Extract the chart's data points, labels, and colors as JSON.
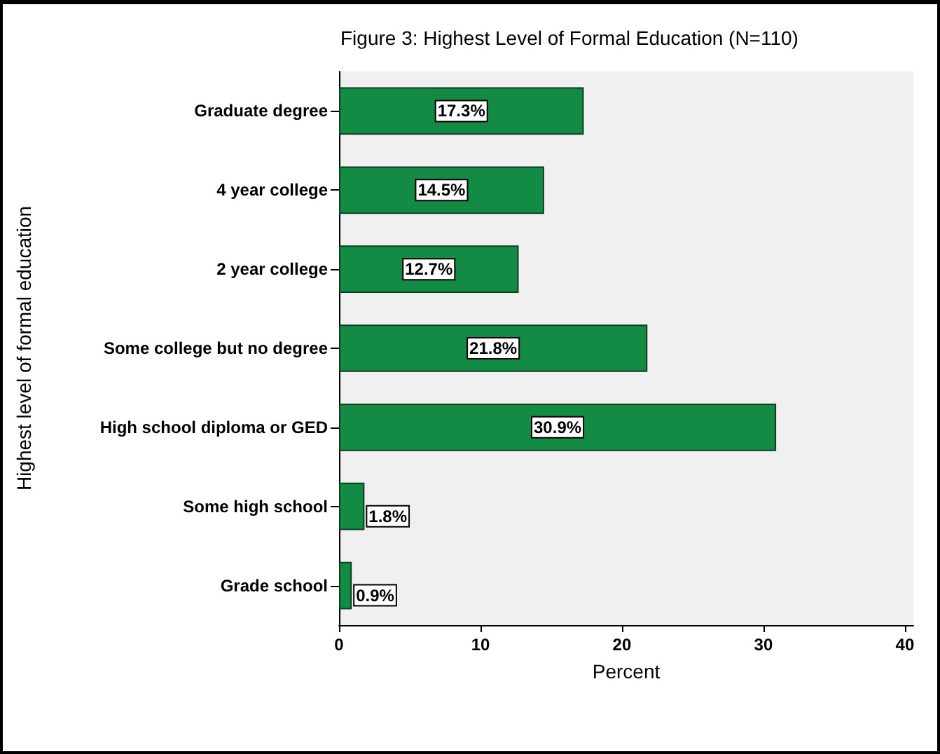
{
  "chart_data": {
    "type": "bar",
    "orientation": "horizontal",
    "title": "Figure 3: Highest Level of Formal Education (N=110)",
    "xlabel": "Percent",
    "ylabel": "Highest level of formal education",
    "categories": [
      "Graduate degree",
      "4 year college",
      "2 year college",
      "Some college but no degree",
      "High school diploma or GED",
      "Some high school",
      "Grade school"
    ],
    "values": [
      17.3,
      14.5,
      12.7,
      21.8,
      30.9,
      1.8,
      0.9
    ],
    "value_labels": [
      "17.3%",
      "14.5%",
      "12.7%",
      "21.8%",
      "30.9%",
      "1.8%",
      "0.9%"
    ],
    "color": "#138b45",
    "xlim": [
      0,
      40.6
    ],
    "xticks": [
      0,
      10,
      20,
      30,
      40
    ],
    "grid": false
  }
}
